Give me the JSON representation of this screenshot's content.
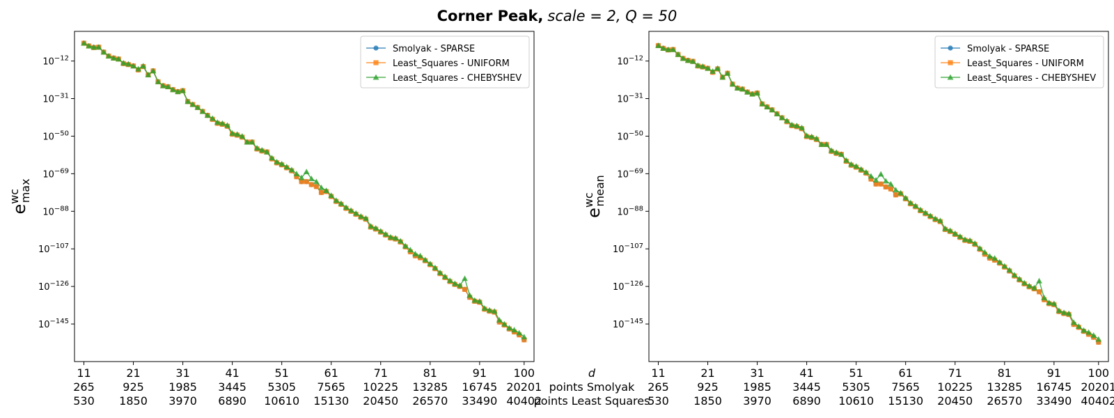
{
  "figure": {
    "title_bold": "Corner Peak,",
    "title_rest": "scale = 2, Q = 50",
    "d_label": "d",
    "row2_label": "points Smolyak",
    "row3_label": "points Least Squares"
  },
  "colors": {
    "smolyak": "#1f77b4",
    "uniform": "#ff7f0e",
    "chebyshev": "#2ca02c"
  },
  "chart_data": [
    {
      "type": "line",
      "ylabel_base": "e",
      "ylabel_sup": "wc",
      "ylabel_sub": "max",
      "yscale": "log",
      "xlim": [
        9.1,
        102.0
      ],
      "ylim_exp": [
        -164,
        3
      ],
      "ytick_exp": [
        -12,
        -31,
        -50,
        -69,
        -88,
        -107,
        -126,
        -145
      ],
      "ytick_label_base": "10",
      "xticks": [
        {
          "d": "11",
          "smolyak": "265",
          "ls": "530"
        },
        {
          "d": "21",
          "smolyak": "925",
          "ls": "1850"
        },
        {
          "d": "31",
          "smolyak": "1985",
          "ls": "3970"
        },
        {
          "d": "41",
          "smolyak": "3445",
          "ls": "6890"
        },
        {
          "d": "51",
          "smolyak": "5305",
          "ls": "10610"
        },
        {
          "d": "61",
          "smolyak": "7565",
          "ls": "15130"
        },
        {
          "d": "71",
          "smolyak": "10225",
          "ls": "20450"
        },
        {
          "d": "81",
          "smolyak": "13285",
          "ls": "26570"
        },
        {
          "d": "91",
          "smolyak": "16745",
          "ls": "33490"
        },
        {
          "d": "100",
          "smolyak": "20201",
          "ls": "40402"
        }
      ],
      "legend_loc": "upper right",
      "x": [
        11,
        12,
        13,
        14,
        15,
        16,
        17,
        18,
        19,
        20,
        21,
        22,
        23,
        24,
        25,
        26,
        27,
        28,
        29,
        30,
        31,
        32,
        33,
        34,
        35,
        36,
        37,
        38,
        39,
        40,
        41,
        42,
        43,
        44,
        45,
        46,
        47,
        48,
        49,
        50,
        51,
        52,
        53,
        54,
        55,
        56,
        57,
        58,
        59,
        60,
        61,
        62,
        63,
        64,
        65,
        66,
        67,
        68,
        69,
        70,
        71,
        72,
        73,
        74,
        75,
        76,
        77,
        78,
        79,
        80,
        81,
        82,
        83,
        84,
        85,
        86,
        87,
        88,
        89,
        90,
        91,
        92,
        93,
        94,
        95,
        96,
        97,
        98,
        99,
        100
      ],
      "series": [
        {
          "name": "Smolyak - SPARSE",
          "marker": "circle",
          "color_key": "smolyak",
          "y_exp": [
            -3.0,
            -4.4,
            -5.2,
            -5.0,
            -7.5,
            -9.5,
            -10.5,
            -11.0,
            -13.3,
            -13.8,
            -14.5,
            -16.5,
            -14.8,
            -19.0,
            -17.0,
            -22.5,
            -24.5,
            -25.0,
            -26.5,
            -27.5,
            -27.0,
            -32.5,
            -34.0,
            -35.5,
            -37.5,
            -39.5,
            -41.5,
            -43.5,
            -44.0,
            -45.0,
            -49.0,
            -49.5,
            -50.5,
            -53.0,
            -53.0,
            -56.5,
            -57.5,
            -58.0,
            -61.5,
            -63.5,
            -64.5,
            -66.0,
            -67.5,
            -70.5,
            -73.0,
            -73.0,
            -74.5,
            -75.5,
            -78.5,
            -78.0,
            -80.5,
            -83.0,
            -84.5,
            -86.5,
            -88.0,
            -89.5,
            -91.0,
            -92.0,
            -96.0,
            -97.0,
            -98.5,
            -100.0,
            -101.5,
            -102.0,
            -103.5,
            -106.0,
            -108.5,
            -110.5,
            -111.5,
            -113.0,
            -115.0,
            -117.0,
            -119.5,
            -121.5,
            -123.5,
            -125.0,
            -126.0,
            -127.5,
            -131.5,
            -133.5,
            -134.0,
            -137.5,
            -138.5,
            -139.0,
            -144.0,
            -145.5,
            -147.5,
            -149.0,
            -150.5,
            -153.0
          ]
        },
        {
          "name": "Least_Squares - UNIFORM",
          "marker": "square",
          "color_key": "uniform",
          "y_exp": [
            -3.0,
            -4.4,
            -5.2,
            -5.0,
            -7.5,
            -9.5,
            -10.5,
            -11.0,
            -13.3,
            -13.8,
            -14.5,
            -16.5,
            -14.8,
            -19.0,
            -17.0,
            -22.5,
            -24.5,
            -25.0,
            -26.5,
            -27.5,
            -27.0,
            -32.5,
            -34.0,
            -35.5,
            -37.5,
            -39.5,
            -41.5,
            -43.5,
            -44.0,
            -45.0,
            -49.0,
            -49.5,
            -50.5,
            -53.0,
            -53.0,
            -56.5,
            -57.5,
            -58.0,
            -61.5,
            -63.5,
            -64.5,
            -66.0,
            -67.5,
            -70.5,
            -73.0,
            -73.0,
            -74.5,
            -75.5,
            -78.5,
            -78.0,
            -80.5,
            -83.0,
            -84.5,
            -86.5,
            -88.0,
            -89.5,
            -91.0,
            -92.0,
            -96.0,
            -97.0,
            -98.5,
            -100.0,
            -101.5,
            -102.0,
            -103.5,
            -106.0,
            -108.5,
            -110.5,
            -111.5,
            -113.0,
            -115.0,
            -117.0,
            -119.5,
            -121.5,
            -123.5,
            -125.0,
            -126.0,
            -127.5,
            -131.5,
            -133.5,
            -134.0,
            -137.5,
            -138.5,
            -139.0,
            -144.0,
            -145.5,
            -147.5,
            -149.0,
            -150.5,
            -153.0
          ]
        },
        {
          "name": "Least_Squares - CHEBYSHEV",
          "marker": "triangle",
          "color_key": "chebyshev",
          "y_exp": [
            -3.0,
            -4.4,
            -5.0,
            -5.0,
            -7.5,
            -9.5,
            -10.5,
            -11.0,
            -13.0,
            -13.5,
            -14.5,
            -16.0,
            -14.5,
            -19.0,
            -17.0,
            -22.5,
            -24.5,
            -25.0,
            -26.5,
            -27.5,
            -27.0,
            -32.5,
            -34.0,
            -35.5,
            -37.5,
            -39.5,
            -41.0,
            -43.0,
            -43.5,
            -44.5,
            -48.5,
            -49.0,
            -50.0,
            -53.0,
            -53.0,
            -56.0,
            -57.0,
            -58.0,
            -61.0,
            -63.0,
            -64.0,
            -65.5,
            -67.0,
            -69.0,
            -71.0,
            -68.0,
            -71.5,
            -73.0,
            -76.0,
            -77.5,
            -80.0,
            -82.5,
            -84.0,
            -86.0,
            -87.5,
            -89.0,
            -90.5,
            -91.5,
            -95.5,
            -96.5,
            -98.0,
            -99.5,
            -101.0,
            -101.5,
            -103.0,
            -105.5,
            -107.5,
            -109.5,
            -110.5,
            -112.5,
            -114.5,
            -116.5,
            -119.0,
            -121.0,
            -123.0,
            -124.5,
            -125.5,
            -122.0,
            -130.5,
            -133.0,
            -133.5,
            -137.0,
            -138.0,
            -138.5,
            -143.0,
            -145.0,
            -147.0,
            -148.0,
            -149.5,
            -151.5
          ]
        }
      ]
    },
    {
      "type": "line",
      "ylabel_base": "e",
      "ylabel_sup": "wc",
      "ylabel_sub": "mean",
      "yscale": "log",
      "xlim": [
        9.1,
        102.0
      ],
      "ylim_exp": [
        -164,
        3
      ],
      "ytick_exp": [
        -12,
        -31,
        -50,
        -69,
        -88,
        -107,
        -126,
        -145
      ],
      "ytick_label_base": "10",
      "xticks": [
        {
          "d": "11",
          "smolyak": "265",
          "ls": "530"
        },
        {
          "d": "21",
          "smolyak": "925",
          "ls": "1850"
        },
        {
          "d": "31",
          "smolyak": "1985",
          "ls": "3970"
        },
        {
          "d": "41",
          "smolyak": "3445",
          "ls": "6890"
        },
        {
          "d": "51",
          "smolyak": "5305",
          "ls": "10610"
        },
        {
          "d": "61",
          "smolyak": "7565",
          "ls": "15130"
        },
        {
          "d": "71",
          "smolyak": "10225",
          "ls": "20450"
        },
        {
          "d": "81",
          "smolyak": "13285",
          "ls": "26570"
        },
        {
          "d": "91",
          "smolyak": "16745",
          "ls": "33490"
        },
        {
          "d": "100",
          "smolyak": "20201",
          "ls": "40402"
        }
      ],
      "legend_loc": "upper right",
      "x": [
        11,
        12,
        13,
        14,
        15,
        16,
        17,
        18,
        19,
        20,
        21,
        22,
        23,
        24,
        25,
        26,
        27,
        28,
        29,
        30,
        31,
        32,
        33,
        34,
        35,
        36,
        37,
        38,
        39,
        40,
        41,
        42,
        43,
        44,
        45,
        46,
        47,
        48,
        49,
        50,
        51,
        52,
        53,
        54,
        55,
        56,
        57,
        58,
        59,
        60,
        61,
        62,
        63,
        64,
        65,
        66,
        67,
        68,
        69,
        70,
        71,
        72,
        73,
        74,
        75,
        76,
        77,
        78,
        79,
        80,
        81,
        82,
        83,
        84,
        85,
        86,
        87,
        88,
        89,
        90,
        91,
        92,
        93,
        94,
        95,
        96,
        97,
        98,
        99,
        100
      ],
      "series": [
        {
          "name": "Smolyak - SPARSE",
          "marker": "circle",
          "color_key": "smolyak",
          "y_exp": [
            -4.2,
            -5.6,
            -6.4,
            -6.2,
            -8.7,
            -10.7,
            -11.7,
            -12.2,
            -14.5,
            -15.0,
            -15.7,
            -17.7,
            -16.0,
            -20.2,
            -18.2,
            -23.7,
            -25.7,
            -26.2,
            -27.7,
            -28.7,
            -28.2,
            -33.7,
            -35.2,
            -36.7,
            -38.7,
            -40.7,
            -42.7,
            -44.7,
            -45.2,
            -46.2,
            -50.2,
            -50.7,
            -51.7,
            -54.2,
            -54.2,
            -57.7,
            -58.7,
            -59.2,
            -62.7,
            -64.7,
            -65.7,
            -67.2,
            -68.7,
            -71.7,
            -74.2,
            -74.2,
            -75.7,
            -76.7,
            -79.7,
            -79.2,
            -81.7,
            -84.2,
            -85.7,
            -87.7,
            -89.2,
            -90.7,
            -92.2,
            -93.2,
            -97.2,
            -98.2,
            -99.7,
            -101.2,
            -102.7,
            -103.2,
            -104.7,
            -107.2,
            -109.7,
            -111.7,
            -112.7,
            -114.2,
            -116.2,
            -118.2,
            -120.7,
            -122.7,
            -124.7,
            -126.2,
            -127.2,
            -128.7,
            -132.7,
            -134.7,
            -135.2,
            -138.7,
            -139.7,
            -140.2,
            -145.2,
            -146.7,
            -148.7,
            -150.2,
            -151.7,
            -154.2
          ]
        },
        {
          "name": "Least_Squares - UNIFORM",
          "marker": "square",
          "color_key": "uniform",
          "y_exp": [
            -4.2,
            -5.6,
            -6.4,
            -6.2,
            -8.7,
            -10.7,
            -11.7,
            -12.2,
            -14.5,
            -15.0,
            -15.7,
            -17.7,
            -16.0,
            -20.2,
            -18.2,
            -23.7,
            -25.7,
            -26.2,
            -27.7,
            -28.7,
            -28.2,
            -33.7,
            -35.2,
            -36.7,
            -38.7,
            -40.7,
            -42.7,
            -44.7,
            -45.2,
            -46.2,
            -50.2,
            -50.7,
            -51.7,
            -54.2,
            -54.2,
            -57.7,
            -58.7,
            -59.2,
            -62.7,
            -64.7,
            -65.7,
            -67.2,
            -68.7,
            -71.7,
            -74.2,
            -74.2,
            -75.7,
            -76.7,
            -79.7,
            -79.2,
            -81.7,
            -84.2,
            -85.7,
            -87.7,
            -89.2,
            -90.7,
            -92.2,
            -93.2,
            -97.2,
            -98.2,
            -99.7,
            -101.2,
            -102.7,
            -103.2,
            -104.7,
            -107.2,
            -109.7,
            -111.7,
            -112.7,
            -114.2,
            -116.2,
            -118.2,
            -120.7,
            -122.7,
            -124.7,
            -126.2,
            -127.2,
            -128.7,
            -132.7,
            -134.7,
            -135.2,
            -138.7,
            -139.7,
            -140.2,
            -145.2,
            -146.7,
            -148.7,
            -150.2,
            -151.7,
            -154.2
          ]
        },
        {
          "name": "Least_Squares - CHEBYSHEV",
          "marker": "triangle",
          "color_key": "chebyshev",
          "y_exp": [
            -4.2,
            -5.6,
            -6.2,
            -6.2,
            -8.7,
            -10.7,
            -11.7,
            -12.2,
            -14.2,
            -14.7,
            -15.7,
            -17.2,
            -15.7,
            -20.2,
            -18.2,
            -23.7,
            -25.7,
            -26.2,
            -27.7,
            -28.7,
            -28.2,
            -33.7,
            -35.2,
            -36.7,
            -38.7,
            -40.7,
            -42.2,
            -44.2,
            -44.7,
            -45.7,
            -49.7,
            -50.2,
            -51.2,
            -54.2,
            -54.2,
            -57.2,
            -58.2,
            -59.2,
            -62.2,
            -64.2,
            -65.2,
            -66.7,
            -68.2,
            -70.2,
            -72.2,
            -69.2,
            -72.7,
            -74.2,
            -77.2,
            -78.7,
            -81.2,
            -83.7,
            -85.2,
            -87.2,
            -88.7,
            -90.2,
            -91.7,
            -92.7,
            -96.7,
            -97.7,
            -99.2,
            -100.7,
            -102.2,
            -102.7,
            -104.2,
            -106.7,
            -108.7,
            -110.7,
            -111.7,
            -113.7,
            -115.7,
            -117.7,
            -120.2,
            -122.2,
            -124.2,
            -125.7,
            -126.7,
            -123.2,
            -131.7,
            -134.2,
            -134.7,
            -138.2,
            -139.2,
            -139.7,
            -144.2,
            -146.2,
            -148.2,
            -149.2,
            -150.7,
            -152.7
          ]
        }
      ]
    }
  ]
}
